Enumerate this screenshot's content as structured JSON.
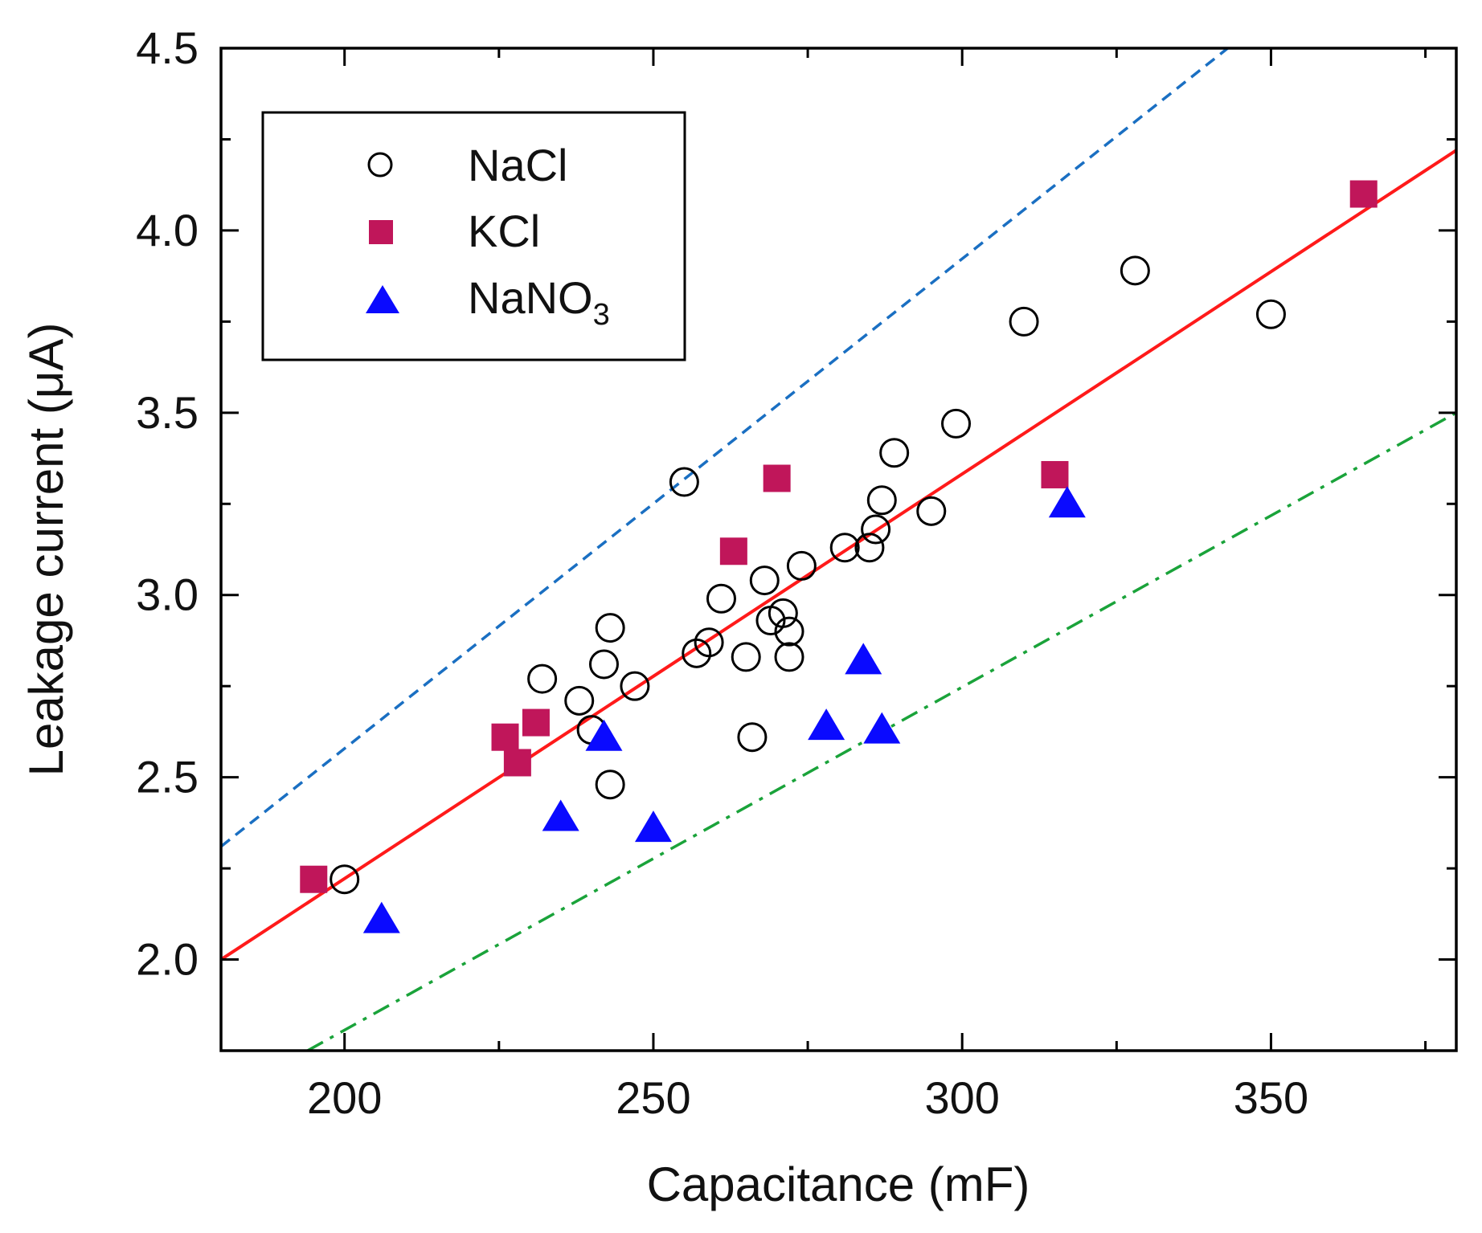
{
  "chart_data": {
    "type": "scatter",
    "title": "",
    "xlabel": "Capacitance (mF)",
    "ylabel": "Leakage current (μA)",
    "xlim": [
      180,
      380
    ],
    "ylim": [
      1.75,
      4.5
    ],
    "x_ticks": [
      "200",
      "250",
      "300",
      "350"
    ],
    "y_ticks": [
      "2.0",
      "2.5",
      "3.0",
      "3.5",
      "4.0",
      "4.5"
    ],
    "legend_position": "top-left",
    "legend": [
      {
        "name": "NaCl",
        "marker": "open-circle"
      },
      {
        "name": "KCl",
        "marker": "filled-square"
      },
      {
        "name": "NaNO",
        "subscript": "3",
        "marker": "filled-triangle"
      }
    ],
    "series": [
      {
        "name": "NaCl",
        "marker": "open-circle",
        "color": "#000000",
        "x": [
          200,
          232,
          238,
          240,
          242,
          243,
          243,
          247,
          255,
          257,
          259,
          261,
          265,
          266,
          268,
          269,
          271,
          272,
          272,
          274,
          281,
          285,
          286,
          287,
          289,
          295,
          299,
          310,
          328,
          350
        ],
        "y": [
          2.22,
          2.77,
          2.71,
          2.63,
          2.81,
          2.91,
          2.48,
          2.75,
          3.31,
          2.84,
          2.87,
          2.99,
          2.83,
          2.61,
          3.04,
          2.93,
          2.95,
          2.9,
          2.83,
          3.08,
          3.13,
          3.13,
          3.18,
          3.26,
          3.39,
          3.23,
          3.47,
          3.75,
          3.89,
          3.77
        ]
      },
      {
        "name": "KCl",
        "marker": "filled-square",
        "color": "#c0165a",
        "x": [
          195,
          226,
          228,
          231,
          263,
          270,
          315,
          365
        ],
        "y": [
          2.22,
          2.61,
          2.54,
          2.65,
          3.12,
          3.32,
          3.33,
          4.1
        ]
      },
      {
        "name": "NaNO3",
        "marker": "filled-triangle",
        "color": "#0a0aff",
        "x": [
          206,
          235,
          242,
          250,
          278,
          284,
          287,
          317
        ],
        "y": [
          2.11,
          2.39,
          2.61,
          2.36,
          2.64,
          2.82,
          2.63,
          3.25
        ]
      }
    ],
    "lines": [
      {
        "name": "fit",
        "style": "solid",
        "color": "#ff1a1a",
        "x": [
          180,
          380
        ],
        "y": [
          2.0,
          4.22
        ]
      },
      {
        "name": "upper-bound",
        "style": "dashed",
        "color": "#1a6fc2",
        "x": [
          180,
          343
        ],
        "y": [
          2.31,
          4.5
        ]
      },
      {
        "name": "lower-bound",
        "style": "dash-dot",
        "color": "#1aa33a",
        "x": [
          194,
          380
        ],
        "y": [
          1.75,
          3.5
        ]
      }
    ]
  }
}
